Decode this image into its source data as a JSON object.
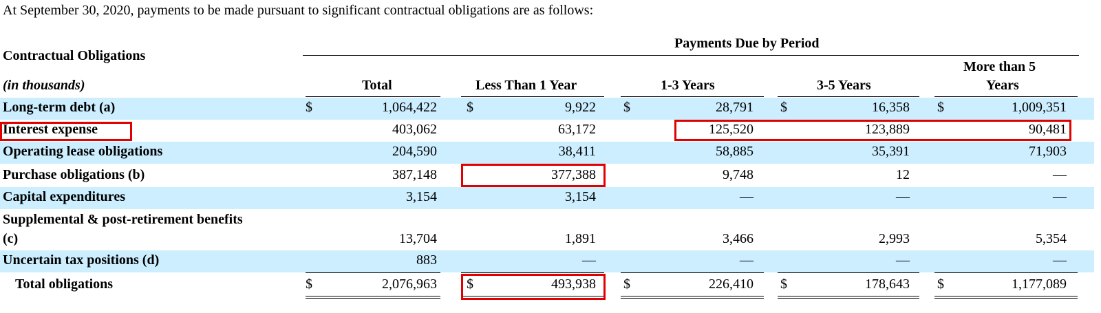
{
  "intro": "At September 30, 2020, payments to be made pursuant to significant contractual obligations are as follows:",
  "header": {
    "group_title": "Payments Due by Period",
    "col_label_title": "Contractual Obligations",
    "units": "(in thousands)",
    "columns": [
      "Total",
      "Less Than 1 Year",
      "1-3 Years",
      "3-5 Years",
      "More than 5",
      "Years"
    ]
  },
  "currency_symbol": "$",
  "rows": [
    {
      "label": "Long-term debt (a)",
      "values": [
        "1,064,422",
        "9,922",
        "28,791",
        "16,358",
        "1,009,351"
      ]
    },
    {
      "label": "Interest expense",
      "values": [
        "403,062",
        "63,172",
        "125,520",
        "123,889",
        "90,481"
      ]
    },
    {
      "label": "Operating lease obligations",
      "values": [
        "204,590",
        "38,411",
        "58,885",
        "35,391",
        "71,903"
      ]
    },
    {
      "label": "Purchase obligations (b)",
      "values": [
        "387,148",
        "377,388",
        "9,748",
        "12",
        "—"
      ]
    },
    {
      "label": "Capital expenditures",
      "values": [
        "3,154",
        "3,154",
        "—",
        "—",
        "—"
      ]
    },
    {
      "label": "Supplemental & post-retirement benefits",
      "label2": "(c)",
      "values": [
        "13,704",
        "1,891",
        "3,466",
        "2,993",
        "5,354"
      ]
    },
    {
      "label": "Uncertain tax positions (d)",
      "values": [
        "883",
        "—",
        "—",
        "—",
        "—"
      ]
    }
  ],
  "total": {
    "label": "Total obligations",
    "values": [
      "2,076,963",
      "493,938",
      "226,410",
      "178,643",
      "1,177,089"
    ]
  },
  "colors": {
    "shade": "#cceeff",
    "highlight_box": "#e00000"
  }
}
